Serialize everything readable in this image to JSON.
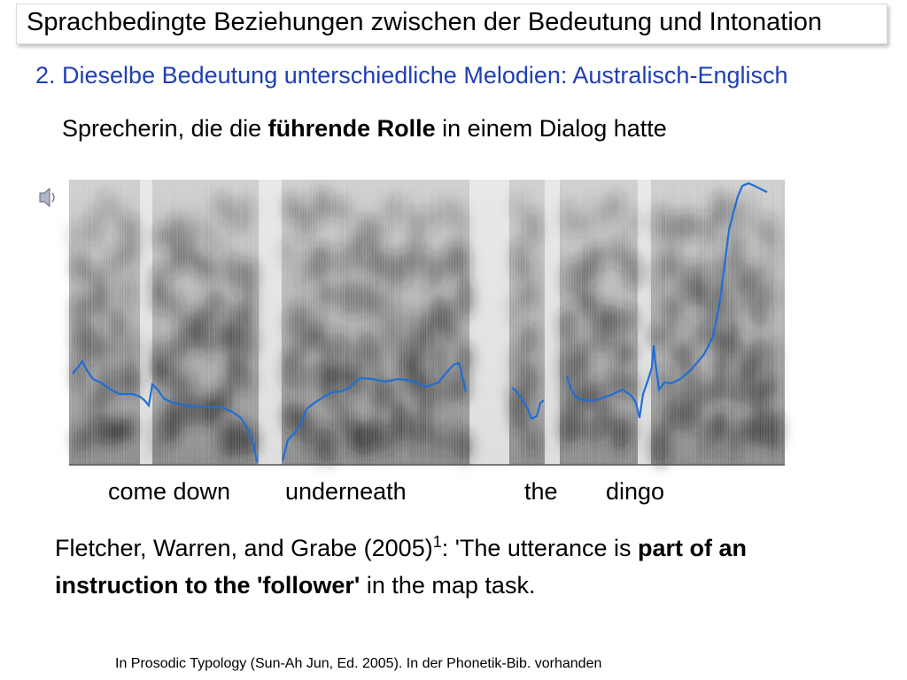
{
  "header": {
    "title": "Sprachbedingte Beziehungen zwischen der Bedeutung und Intonation"
  },
  "subtitle": "2. Dieselbe Bedeutung unterschiedliche Melodien: Australisch-Englisch",
  "speaker_line": [
    "Sprecherin, die die ",
    "führende Rolle",
    " in einem Dialog hatte"
  ],
  "words": [
    "come down",
    "underneath",
    "the",
    "dingo"
  ],
  "citation": [
    "Fletcher, Warren, and Grabe (2005)",
    "1",
    ": 'The utterance is ",
    "part of an instruction to the 'follower'",
    " in the map task."
  ],
  "footnote": "In Prosodic Typology (Sun-Ah Jun, Ed. 2005). In der Phonetik-Bib. vorhanden"
}
